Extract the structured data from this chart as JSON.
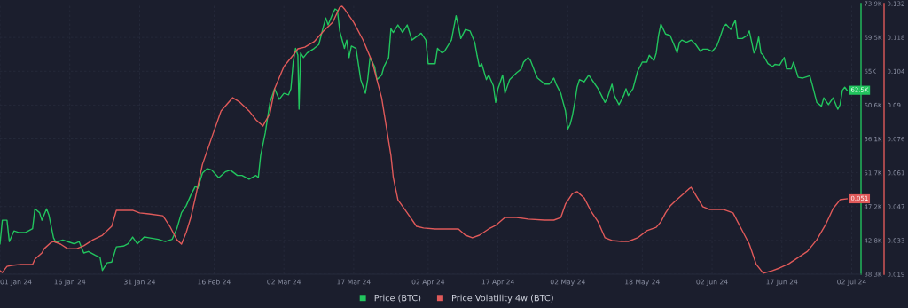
{
  "chart_data": {
    "type": "line",
    "xlim": [
      "2024-01-01",
      "2024-07-04"
    ],
    "xticks": [
      {
        "value": "2024-01-01",
        "label": "01 Jan 24"
      },
      {
        "value": "2024-01-16",
        "label": "16 Jan 24"
      },
      {
        "value": "2024-01-31",
        "label": "31 Jan 24"
      },
      {
        "value": "2024-02-16",
        "label": "16 Feb 24"
      },
      {
        "value": "2024-03-02",
        "label": "02 Mar 24"
      },
      {
        "value": "2024-03-17",
        "label": "17 Mar 24"
      },
      {
        "value": "2024-04-02",
        "label": "02 Apr 24"
      },
      {
        "value": "2024-04-17",
        "label": "17 Apr 24"
      },
      {
        "value": "2024-05-02",
        "label": "02 May 24"
      },
      {
        "value": "2024-05-18",
        "label": "18 May 24"
      },
      {
        "value": "2024-06-02",
        "label": "02 Jun 24"
      },
      {
        "value": "2024-06-17",
        "label": "17 Jun 24"
      },
      {
        "value": "2024-07-02",
        "label": "02 Jul 24"
      }
    ],
    "ylim": [
      38.3,
      73.9
    ],
    "yticks": [
      {
        "value": 38.3,
        "label": "38.3K"
      },
      {
        "value": 42.75,
        "label": "42.8K"
      },
      {
        "value": 47.2,
        "label": "47.2K"
      },
      {
        "value": 51.65,
        "label": "51.7K"
      },
      {
        "value": 56.1,
        "label": "56.1K"
      },
      {
        "value": 60.55,
        "label": "60.6K"
      },
      {
        "value": 65.0,
        "label": "65K"
      },
      {
        "value": 69.45,
        "label": "69.5K"
      },
      {
        "value": 73.9,
        "label": "73.9K"
      }
    ],
    "y2lim": [
      0.019,
      0.132
    ],
    "y2ticks": [
      0.019,
      {
        "value": 0.033125,
        "label": "0.033"
      },
      {
        "value": 0.04725,
        "label": "0.047"
      },
      {
        "value": 0.061375,
        "label": "0.061"
      },
      {
        "value": 0.0755,
        "label": "0.076"
      },
      {
        "value": 0.089625,
        "label": "0.09"
      },
      {
        "value": 0.10375,
        "label": "0.104"
      },
      {
        "value": 0.117875,
        "label": "0.118"
      },
      0.132
    ],
    "grid": true,
    "legend": "bottom",
    "series": [
      {
        "name": "Price (BTC)",
        "color": "#22c55e",
        "x": [
          "2024-01-01",
          "2024-01-01T12:00",
          "2024-01-02T12:00",
          "2024-01-03",
          "2024-01-04",
          "2024-01-05",
          "2024-01-06T12:00",
          "2024-01-08",
          "2024-01-08T12:00",
          "2024-01-09T12:00",
          "2024-01-10",
          "2024-01-11",
          "2024-01-11T12:00",
          "2024-01-12T12:00",
          "2024-01-13",
          "2024-01-14T12:00",
          "2024-01-16",
          "2024-01-17",
          "2024-01-18",
          "2024-01-19",
          "2024-01-20",
          "2024-01-21T12:00",
          "2024-01-22T12:00",
          "2024-01-23",
          "2024-01-24",
          "2024-01-25",
          "2024-01-26",
          "2024-01-27T12:00",
          "2024-01-28T12:00",
          "2024-01-29T12:00",
          "2024-01-30T12:00",
          "2024-01-31T12:00",
          "2024-02-01",
          "2024-02-02",
          "2024-02-04",
          "2024-02-05T12:00",
          "2024-02-07",
          "2024-02-08",
          "2024-02-09",
          "2024-02-10",
          "2024-02-11",
          "2024-02-12",
          "2024-02-12T12:00",
          "2024-02-13T12:00",
          "2024-02-14T12:00",
          "2024-02-15T12:00",
          "2024-02-17",
          "2024-02-18T12:00",
          "2024-02-19T12:00",
          "2024-02-21",
          "2024-02-22",
          "2024-02-23T12:00",
          "2024-02-25",
          "2024-02-25T12:00",
          "2024-02-26",
          "2024-02-27",
          "2024-02-28",
          "2024-02-29",
          "2024-03-01",
          "2024-03-02",
          "2024-03-03",
          "2024-03-03T12:00",
          "2024-03-04",
          "2024-03-04T12:00",
          "2024-03-05",
          "2024-03-05T06:00",
          "2024-03-05T14:00",
          "2024-03-06T05:00",
          "2024-03-07",
          "2024-03-08T12:00",
          "2024-03-09T12:00",
          "2024-03-10T12:00",
          "2024-03-11",
          "2024-03-11T12:00",
          "2024-03-12T12:00",
          "2024-03-13",
          "2024-03-13T12:00",
          "2024-03-14",
          "2024-03-15",
          "2024-03-15T12:00",
          "2024-03-16",
          "2024-03-16T12:00",
          "2024-03-17T12:00",
          "2024-03-18T12:00",
          "2024-03-19T12:00",
          "2024-03-20",
          "2024-03-20T12:00",
          "2024-03-21T12:00",
          "2024-03-22",
          "2024-03-23",
          "2024-03-23T12:00",
          "2024-03-24T12:00",
          "2024-03-25",
          "2024-03-25T12:00",
          "2024-03-26T12:00",
          "2024-03-27T12:00",
          "2024-03-28T12:00",
          "2024-03-29T12:00",
          "2024-03-31T12:00",
          "2024-04-01T12:00",
          "2024-04-02",
          "2024-04-03T12:00",
          "2024-04-04",
          "2024-04-05",
          "2024-04-05T12:00",
          "2024-04-07",
          "2024-04-08",
          "2024-04-08T12:00",
          "2024-04-09",
          "2024-04-10",
          "2024-04-11",
          "2024-04-12",
          "2024-04-12T12:00",
          "2024-04-13",
          "2024-04-13T12:00",
          "2024-04-14T12:00",
          "2024-04-15",
          "2024-04-16",
          "2024-04-16T12:00",
          "2024-04-17",
          "2024-04-18",
          "2024-04-18T12:00",
          "2024-04-19T12:00",
          "2024-04-21",
          "2024-04-22",
          "2024-04-22T12:00",
          "2024-04-23T12:00",
          "2024-04-24",
          "2024-04-25",
          "2024-04-25T12:00",
          "2024-04-26T12:00",
          "2024-04-27",
          "2024-04-28",
          "2024-04-29",
          "2024-04-29T12:00",
          "2024-04-30T12:00",
          "2024-05-01",
          "2024-05-01T12:00",
          "2024-05-02",
          "2024-05-02T12:00",
          "2024-05-03",
          "2024-05-03T12:00",
          "2024-05-04",
          "2024-05-04T12:00",
          "2024-05-05T12:00",
          "2024-05-06T12:00",
          "2024-05-07T12:00",
          "2024-05-08T12:00",
          "2024-05-09",
          "2024-05-10",
          "2024-05-10T12:00",
          "2024-05-11T12:00",
          "2024-05-12",
          "2024-05-13",
          "2024-05-14",
          "2024-05-14T12:00",
          "2024-05-15",
          "2024-05-16",
          "2024-05-17",
          "2024-05-18",
          "2024-05-19",
          "2024-05-19T12:00",
          "2024-05-20T12:00",
          "2024-05-21",
          "2024-05-21T12:00",
          "2024-05-22",
          "2024-05-23",
          "2024-05-24",
          "2024-05-25",
          "2024-05-25T12:00",
          "2024-05-26",
          "2024-05-26T12:00",
          "2024-05-27T12:00",
          "2024-05-28T12:00",
          "2024-05-29T12:00",
          "2024-05-30T12:00",
          "2024-05-31",
          "2024-06-01",
          "2024-06-02",
          "2024-06-03",
          "2024-06-03T12:00",
          "2024-06-04T12:00",
          "2024-06-05",
          "2024-06-06",
          "2024-06-07",
          "2024-06-07T12:00",
          "2024-06-08T12:00",
          "2024-06-09T12:00",
          "2024-06-10",
          "2024-06-11",
          "2024-06-11T12:00",
          "2024-06-12",
          "2024-06-12T12:00",
          "2024-06-13",
          "2024-06-14",
          "2024-06-15",
          "2024-06-15T12:00",
          "2024-06-16T12:00",
          "2024-06-17T12:00",
          "2024-06-18",
          "2024-06-19",
          "2024-06-19T12:00",
          "2024-06-20T12:00",
          "2024-06-21T12:00",
          "2024-06-23",
          "2024-06-23T12:00",
          "2024-06-24T12:00",
          "2024-06-25T12:00",
          "2024-06-26",
          "2024-06-27",
          "2024-06-28",
          "2024-06-29",
          "2024-06-29T12:00",
          "2024-06-30",
          "2024-06-30T12:00",
          "2024-07-01"
        ],
        "values": [
          42.3,
          45.4,
          45.4,
          42.6,
          44.0,
          43.8,
          43.8,
          44.3,
          46.9,
          46.4,
          45.4,
          46.9,
          46.1,
          43.1,
          42.5,
          42.8,
          42.5,
          42.3,
          42.6,
          41.1,
          41.3,
          40.8,
          40.5,
          38.8,
          39.8,
          39.9,
          41.9,
          42.0,
          42.3,
          43.2,
          42.3,
          42.9,
          43.2,
          43.1,
          42.9,
          42.6,
          42.9,
          44.3,
          46.4,
          47.3,
          48.7,
          49.9,
          49.6,
          51.6,
          52.2,
          52.0,
          51.0,
          51.8,
          52.0,
          51.3,
          51.3,
          50.8,
          51.3,
          51.0,
          53.9,
          56.9,
          60.9,
          62.7,
          61.3,
          62.1,
          61.9,
          62.7,
          66.2,
          68.0,
          67.1,
          60.0,
          67.4,
          66.8,
          67.4,
          68.0,
          68.5,
          70.9,
          72.0,
          71.1,
          72.6,
          73.2,
          73.0,
          70.3,
          68.0,
          69.1,
          66.8,
          68.3,
          68.0,
          63.9,
          62.1,
          63.9,
          66.8,
          65.6,
          63.9,
          64.5,
          65.6,
          66.8,
          70.6,
          70.1,
          71.1,
          70.1,
          71.1,
          69.1,
          70.0,
          69.1,
          66.0,
          66.0,
          68.0,
          67.4,
          67.6,
          69.1,
          72.3,
          70.9,
          69.3,
          70.5,
          70.3,
          68.8,
          67.1,
          65.6,
          66.0,
          63.9,
          64.5,
          63.1,
          60.9,
          62.7,
          64.5,
          62.1,
          63.9,
          64.8,
          65.3,
          66.2,
          66.8,
          66.4,
          64.8,
          64.1,
          63.6,
          63.3,
          63.3,
          64.1,
          63.3,
          62.1,
          60.9,
          59.8,
          57.4,
          58.0,
          59.2,
          60.9,
          62.9,
          63.9,
          63.6,
          64.5,
          63.6,
          62.7,
          62.1,
          60.9,
          61.5,
          63.3,
          61.8,
          60.6,
          61.8,
          62.7,
          61.8,
          62.7,
          65.0,
          66.2,
          66.2,
          67.1,
          66.4,
          67.4,
          69.7,
          71.2,
          69.9,
          69.7,
          68.2,
          67.4,
          68.8,
          69.1,
          68.8,
          69.1,
          68.5,
          67.6,
          67.9,
          67.9,
          67.6,
          68.3,
          69.1,
          70.9,
          71.2,
          70.5,
          71.7,
          69.3,
          69.3,
          69.7,
          70.3,
          67.4,
          68.0,
          69.5,
          67.4,
          67.1,
          66.0,
          65.6,
          65.9,
          65.8,
          66.8,
          65.3,
          65.3,
          66.2,
          64.2,
          64.1,
          64.4,
          63.3,
          60.9,
          60.4,
          61.5,
          60.6,
          61.5,
          60.0,
          60.6,
          62.5,
          62.9,
          62.5
        ],
        "value_labels": [
          null,
          null,
          null,
          null,
          null,
          null,
          null,
          null,
          null,
          null,
          null,
          null,
          null,
          null,
          null,
          null,
          null,
          null,
          null,
          null,
          null,
          null,
          null,
          null,
          null,
          null,
          null,
          null,
          null,
          null,
          null,
          null,
          null,
          null,
          null,
          null,
          null,
          null,
          null,
          null,
          null,
          null,
          null,
          null,
          null,
          null,
          null,
          null,
          null,
          null,
          null,
          null,
          null,
          null,
          null,
          null,
          null,
          null,
          null,
          null,
          null,
          null,
          null,
          null,
          null,
          null,
          null,
          null,
          null,
          null,
          null,
          null,
          null,
          null,
          null,
          null,
          null,
          null,
          null,
          null,
          null,
          null,
          null,
          null,
          null,
          null,
          null,
          null,
          null,
          null,
          null,
          null,
          null,
          null,
          null,
          null,
          null,
          null,
          null,
          null,
          null,
          null,
          null,
          null,
          null,
          null,
          null,
          null,
          null,
          null,
          null,
          null,
          null,
          null,
          null,
          null,
          null,
          null,
          null,
          null,
          null,
          null,
          null,
          null,
          null,
          null,
          null,
          null,
          null,
          null,
          null,
          null,
          null,
          null,
          null,
          null,
          null,
          null,
          null,
          null,
          null,
          null,
          null,
          null,
          null,
          null,
          null,
          null,
          null,
          null,
          null,
          null,
          null,
          null,
          null,
          null,
          null,
          null,
          null,
          null,
          null,
          null,
          null,
          null,
          null,
          null,
          null,
          null,
          null,
          null,
          null,
          null,
          null,
          null,
          null,
          null,
          null,
          null,
          null,
          null,
          null,
          null,
          null,
          null,
          null,
          null,
          null,
          null,
          null,
          null,
          null,
          null,
          null,
          null,
          null,
          null,
          null,
          null,
          null,
          null,
          null,
          null,
          null,
          null,
          null,
          null,
          null,
          null,
          null,
          null,
          null,
          null,
          null,
          null,
          null,
          "62.5K"
        ]
      },
      {
        "name": "Price Volatility 4w (BTC)",
        "color": "#e05a5a",
        "axis": "y2",
        "x": [
          "2024-01-01",
          "2024-01-01T12:00",
          "2024-01-02T12:00",
          "2024-01-03T12:00",
          "2024-01-05T12:00",
          "2024-01-08",
          "2024-01-08T12:00",
          "2024-01-10",
          "2024-01-10T12:00",
          "2024-01-12",
          "2024-01-12T12:00",
          "2024-01-14",
          "2024-01-15T12:00",
          "2024-01-17T12:00",
          "2024-01-19",
          "2024-01-21",
          "2024-01-23",
          "2024-01-25",
          "2024-01-26",
          "2024-01-27T12:00",
          "2024-01-29T12:00",
          "2024-01-31",
          "2024-02-02",
          "2024-02-05",
          "2024-02-06T12:00",
          "2024-02-08",
          "2024-02-09",
          "2024-02-10",
          "2024-02-11",
          "2024-02-12",
          "2024-02-13T12:00",
          "2024-02-15T12:00",
          "2024-02-17T12:00",
          "2024-02-20",
          "2024-02-21T12:00",
          "2024-02-23T12:00",
          "2024-02-25",
          "2024-02-26T12:00",
          "2024-02-27",
          "2024-02-28",
          "2024-02-29",
          "2024-03-02",
          "2024-03-04",
          "2024-03-05",
          "2024-03-06T12:00",
          "2024-03-08T12:00",
          "2024-03-10T12:00",
          "2024-03-12T12:00",
          "2024-03-14",
          "2024-03-14T12:00",
          "2024-03-15",
          "2024-03-17",
          "2024-03-19",
          "2024-03-21",
          "2024-03-23",
          "2024-03-25",
          "2024-03-25T12:00",
          "2024-03-26T12:00",
          "2024-03-28T12:00",
          "2024-03-30T12:00",
          "2024-04-01",
          "2024-04-03T12:00",
          "2024-04-06",
          "2024-04-08T12:00",
          "2024-04-10",
          "2024-04-11T12:00",
          "2024-04-13",
          "2024-04-15",
          "2024-04-16T12:00",
          "2024-04-18T12:00",
          "2024-04-21",
          "2024-04-23T12:00",
          "2024-04-27",
          "2024-04-29",
          "2024-04-30T12:00",
          "2024-05-01T12:00",
          "2024-05-03",
          "2024-05-04",
          "2024-05-05T12:00",
          "2024-05-07",
          "2024-05-08T12:00",
          "2024-05-10",
          "2024-05-11T12:00",
          "2024-05-13T12:00",
          "2024-05-15",
          "2024-05-17",
          "2024-05-19",
          "2024-05-21",
          "2024-05-22",
          "2024-05-23",
          "2024-05-24",
          "2024-05-25",
          "2024-05-26T12:00",
          "2024-05-28",
          "2024-05-28T12:00",
          "2024-05-29T12:00",
          "2024-05-31",
          "2024-06-01T12:00",
          "2024-06-04T12:00",
          "2024-06-06T12:00",
          "2024-06-08",
          "2024-06-10",
          "2024-06-11T12:00",
          "2024-06-13",
          "2024-06-15",
          "2024-06-16T12:00",
          "2024-06-18T12:00",
          "2024-06-20T12:00",
          "2024-06-22T12:00",
          "2024-06-24T12:00",
          "2024-06-26T12:00",
          "2024-06-28",
          "2024-06-29T12:00",
          "2024-07-01"
        ],
        "values": [
          0.0205,
          0.0197,
          0.0223,
          0.0227,
          0.0231,
          0.0231,
          0.0253,
          0.0279,
          0.0297,
          0.0323,
          0.0327,
          0.0316,
          0.0297,
          0.0297,
          0.0309,
          0.0334,
          0.0353,
          0.039,
          0.0457,
          0.0457,
          0.0457,
          0.0446,
          0.0442,
          0.0434,
          0.039,
          0.0334,
          0.0316,
          0.0364,
          0.0427,
          0.0512,
          0.0649,
          0.0761,
          0.0872,
          0.0927,
          0.0909,
          0.0872,
          0.0835,
          0.0809,
          0.0827,
          0.0861,
          0.0964,
          0.1057,
          0.1105,
          0.1131,
          0.1138,
          0.1161,
          0.1205,
          0.1242,
          0.1305,
          0.1309,
          0.1298,
          0.1242,
          0.1168,
          0.1075,
          0.0927,
          0.0686,
          0.0594,
          0.0501,
          0.0446,
          0.039,
          0.0383,
          0.0379,
          0.0379,
          0.0379,
          0.0353,
          0.0342,
          0.0353,
          0.0379,
          0.0394,
          0.0427,
          0.0427,
          0.042,
          0.0416,
          0.0416,
          0.0427,
          0.0483,
          0.0527,
          0.0535,
          0.0509,
          0.0453,
          0.0409,
          0.0342,
          0.0331,
          0.0327,
          0.0327,
          0.0342,
          0.0372,
          0.0386,
          0.0409,
          0.0446,
          0.0475,
          0.0494,
          0.052,
          0.0546,
          0.0553,
          0.052,
          0.0472,
          0.046,
          0.046,
          0.0446,
          0.039,
          0.0316,
          0.0231,
          0.0194,
          0.0205,
          0.0216,
          0.0234,
          0.026,
          0.0286,
          0.0334,
          0.0401,
          0.0464,
          0.0501,
          0.0505
        ],
        "value_labels": [
          null,
          null,
          null,
          null,
          null,
          null,
          null,
          null,
          null,
          null,
          null,
          null,
          null,
          null,
          null,
          null,
          null,
          null,
          null,
          null,
          null,
          null,
          null,
          null,
          null,
          null,
          null,
          null,
          null,
          null,
          null,
          null,
          null,
          null,
          null,
          null,
          null,
          null,
          null,
          null,
          null,
          null,
          null,
          null,
          null,
          null,
          null,
          null,
          null,
          null,
          null,
          null,
          null,
          null,
          null,
          null,
          null,
          null,
          null,
          null,
          null,
          null,
          null,
          null,
          null,
          null,
          null,
          null,
          null,
          null,
          null,
          null,
          null,
          null,
          null,
          null,
          null,
          null,
          null,
          null,
          null,
          null,
          null,
          null,
          null,
          null,
          null,
          null,
          null,
          null,
          null,
          null,
          null,
          null,
          null,
          null,
          null,
          null,
          null,
          null,
          null,
          null,
          null,
          null,
          null,
          null,
          null,
          null,
          null,
          null,
          null,
          null,
          null,
          "0.051"
        ]
      }
    ]
  }
}
